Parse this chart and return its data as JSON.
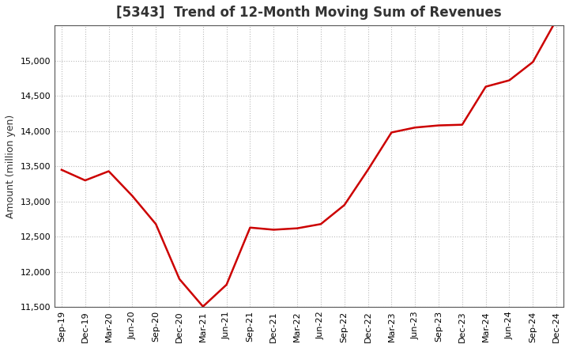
{
  "title": "[5343]  Trend of 12-Month Moving Sum of Revenues",
  "ylabel": "Amount (million yen)",
  "line_color": "#cc0000",
  "background_color": "#ffffff",
  "plot_bg_color": "#ffffff",
  "grid_color": "#bbbbbb",
  "title_fontsize": 12,
  "title_color": "#333333",
  "label_fontsize": 9,
  "tick_fontsize": 8,
  "ylim": [
    11500,
    15500
  ],
  "yticks": [
    11500,
    12000,
    12500,
    13000,
    13500,
    14000,
    14500,
    15000
  ],
  "x_labels": [
    "Sep-19",
    "Dec-19",
    "Mar-20",
    "Jun-20",
    "Sep-20",
    "Dec-20",
    "Mar-21",
    "Jun-21",
    "Sep-21",
    "Dec-21",
    "Mar-22",
    "Jun-22",
    "Sep-22",
    "Dec-22",
    "Mar-23",
    "Jun-23",
    "Sep-23",
    "Dec-23",
    "Mar-24",
    "Jun-24",
    "Sep-24",
    "Dec-24"
  ],
  "data": [
    [
      "Sep-19",
      13450
    ],
    [
      "Dec-19",
      13300
    ],
    [
      "Mar-20",
      13430
    ],
    [
      "Jun-20",
      13080
    ],
    [
      "Sep-20",
      12680
    ],
    [
      "Dec-20",
      11900
    ],
    [
      "Mar-21",
      11510
    ],
    [
      "Jun-21",
      11820
    ],
    [
      "Sep-21",
      12630
    ],
    [
      "Dec-21",
      12600
    ],
    [
      "Mar-22",
      12620
    ],
    [
      "Jun-22",
      12680
    ],
    [
      "Sep-22",
      12950
    ],
    [
      "Dec-22",
      13450
    ],
    [
      "Mar-23",
      13980
    ],
    [
      "Jun-23",
      14050
    ],
    [
      "Sep-23",
      14080
    ],
    [
      "Dec-23",
      14090
    ],
    [
      "Mar-24",
      14630
    ],
    [
      "Jun-24",
      14720
    ],
    [
      "Sep-24",
      14980
    ],
    [
      "Dec-24",
      15580
    ]
  ]
}
